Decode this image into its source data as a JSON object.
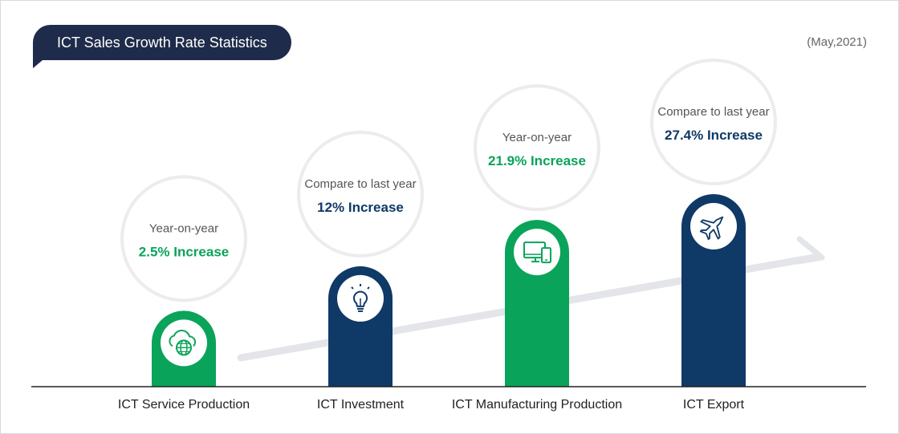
{
  "title": "ICT Sales Growth Rate Statistics",
  "date": "(May,2021)",
  "colors": {
    "green": "#0aa35a",
    "navy": "#0f3966",
    "title_bg": "#1f2b4a"
  },
  "chart_data": {
    "type": "bar",
    "categories": [
      "ICT Service Production",
      "ICT Investment",
      "ICT Manufacturing Production",
      "ICT Export"
    ],
    "values": [
      2.5,
      12,
      21.9,
      27.4
    ],
    "units": "%",
    "bars": [
      {
        "label": "ICT Service Production",
        "value": 2.5,
        "caption": "Year-on-year",
        "value_text": "2.5% Increase",
        "color": "green",
        "icon": "cloud-globe-icon"
      },
      {
        "label": "ICT Investment",
        "value": 12,
        "caption": "Compare to last year",
        "value_text": "12% Increase",
        "color": "navy",
        "icon": "lightbulb-icon"
      },
      {
        "label": "ICT Manufacturing Production",
        "value": 21.9,
        "caption": "Year-on-year",
        "value_text": "21.9% Increase",
        "color": "green",
        "icon": "devices-icon"
      },
      {
        "label": "ICT Export",
        "value": 27.4,
        "caption": "Compare to last year",
        "value_text": "27.4% Increase",
        "color": "navy",
        "icon": "airplane-icon"
      }
    ],
    "trend_arrow": true
  }
}
